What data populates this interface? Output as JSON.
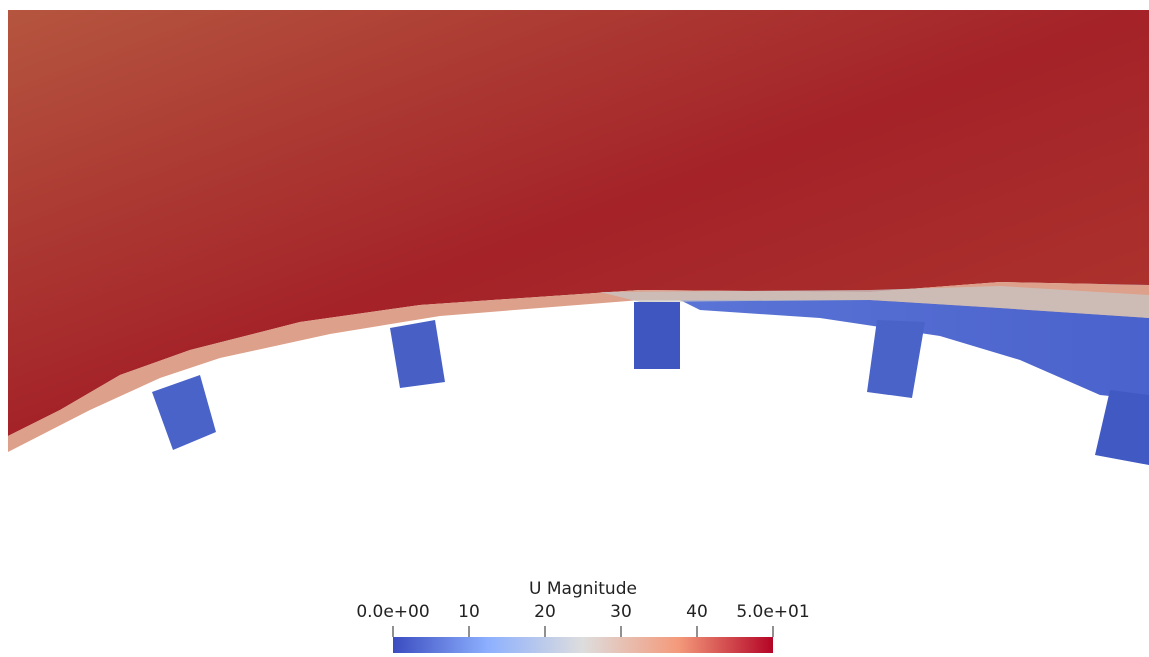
{
  "colorbar": {
    "title": "U Magnitude",
    "range": [
      0,
      50
    ],
    "ticks": [
      {
        "value": 0,
        "label": "0.0e+00"
      },
      10,
      20,
      30,
      40,
      {
        "value": 50,
        "label": "5.0e+01"
      }
    ]
  }
}
